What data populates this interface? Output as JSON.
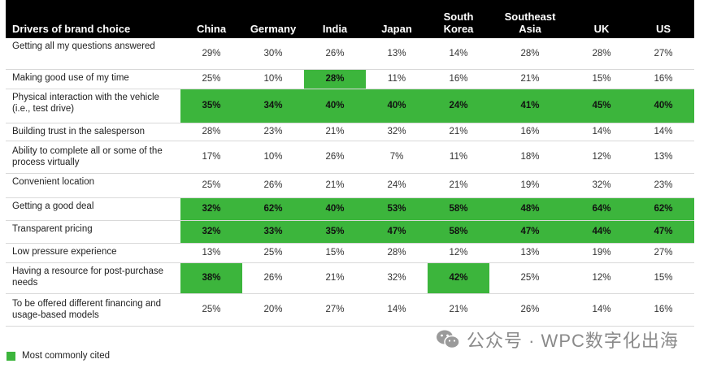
{
  "chart_data": {
    "type": "table",
    "header_label": "Drivers of brand choice",
    "columns": [
      "China",
      "Germany",
      "India",
      "Japan",
      "South Korea",
      "Southeast Asia",
      "UK",
      "US"
    ],
    "rows": [
      {
        "label": "Getting all my questions answered",
        "values": [
          "29%",
          "30%",
          "26%",
          "13%",
          "14%",
          "28%",
          "28%",
          "27%"
        ],
        "highlight": [
          false,
          false,
          false,
          false,
          false,
          false,
          false,
          false
        ]
      },
      {
        "label": "Making good use of my time",
        "values": [
          "25%",
          "10%",
          "28%",
          "11%",
          "16%",
          "21%",
          "15%",
          "16%"
        ],
        "highlight": [
          false,
          false,
          true,
          false,
          false,
          false,
          false,
          false
        ]
      },
      {
        "label": "Physical interaction with the vehicle (i.e., test drive)",
        "values": [
          "35%",
          "34%",
          "40%",
          "40%",
          "24%",
          "41%",
          "45%",
          "40%"
        ],
        "highlight": [
          true,
          true,
          true,
          true,
          true,
          true,
          true,
          true
        ]
      },
      {
        "label": "Building trust in the salesperson",
        "values": [
          "28%",
          "23%",
          "21%",
          "32%",
          "21%",
          "16%",
          "14%",
          "14%"
        ],
        "highlight": [
          false,
          false,
          false,
          false,
          false,
          false,
          false,
          false
        ]
      },
      {
        "label": "Ability to complete all or some of the process virtually",
        "values": [
          "17%",
          "10%",
          "26%",
          "7%",
          "11%",
          "18%",
          "12%",
          "13%"
        ],
        "highlight": [
          false,
          false,
          false,
          false,
          false,
          false,
          false,
          false
        ]
      },
      {
        "label": "Convenient location",
        "values": [
          "25%",
          "26%",
          "21%",
          "24%",
          "21%",
          "19%",
          "32%",
          "23%"
        ],
        "highlight": [
          false,
          false,
          false,
          false,
          false,
          false,
          false,
          false
        ]
      },
      {
        "label": "Getting a good deal",
        "values": [
          "32%",
          "62%",
          "40%",
          "53%",
          "58%",
          "48%",
          "64%",
          "62%"
        ],
        "highlight": [
          true,
          true,
          true,
          true,
          true,
          true,
          true,
          true
        ]
      },
      {
        "label": "Transparent pricing",
        "values": [
          "32%",
          "33%",
          "35%",
          "47%",
          "58%",
          "47%",
          "44%",
          "47%"
        ],
        "highlight": [
          true,
          true,
          true,
          true,
          true,
          true,
          true,
          true
        ]
      },
      {
        "label": "Low pressure experience",
        "values": [
          "13%",
          "25%",
          "15%",
          "28%",
          "12%",
          "13%",
          "19%",
          "27%"
        ],
        "highlight": [
          false,
          false,
          false,
          false,
          false,
          false,
          false,
          false
        ]
      },
      {
        "label": "Having a resource for post-purchase needs",
        "values": [
          "38%",
          "26%",
          "21%",
          "32%",
          "42%",
          "25%",
          "12%",
          "15%"
        ],
        "highlight": [
          true,
          false,
          false,
          false,
          true,
          false,
          false,
          false
        ]
      },
      {
        "label": "To be offered different financing and usage-based models",
        "values": [
          "25%",
          "20%",
          "27%",
          "14%",
          "21%",
          "26%",
          "14%",
          "16%"
        ],
        "highlight": [
          false,
          false,
          false,
          false,
          false,
          false,
          false,
          false
        ]
      }
    ],
    "legend": "Most commonly cited",
    "highlight_color": "#3cb53c"
  },
  "watermark": "公众号 · WPC数字化出海",
  "watermark_icon": "wechat-icon"
}
